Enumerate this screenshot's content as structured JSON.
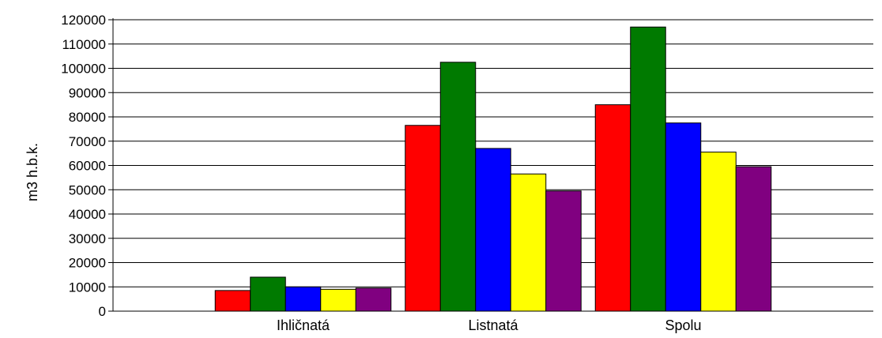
{
  "chart_data": {
    "type": "bar",
    "title": "",
    "xlabel": "",
    "ylabel": "m3 h.b.k.",
    "categories": [
      "Ihličnatá",
      "Listnatá",
      "Spolu"
    ],
    "ylim": [
      0,
      120000
    ],
    "yticks": [
      0,
      10000,
      20000,
      30000,
      40000,
      50000,
      60000,
      70000,
      80000,
      90000,
      100000,
      110000,
      120000
    ],
    "grid": true,
    "legend": "none",
    "series": [
      {
        "color": "#ff0000",
        "values": [
          8500,
          76500,
          85000
        ]
      },
      {
        "color": "#007a00",
        "values": [
          14000,
          102500,
          117000
        ]
      },
      {
        "color": "#0000ff",
        "values": [
          10000,
          67000,
          77500
        ]
      },
      {
        "color": "#ffff00",
        "values": [
          9000,
          56500,
          65500
        ]
      },
      {
        "color": "#800080",
        "values": [
          9500,
          49500,
          59500
        ]
      }
    ]
  }
}
